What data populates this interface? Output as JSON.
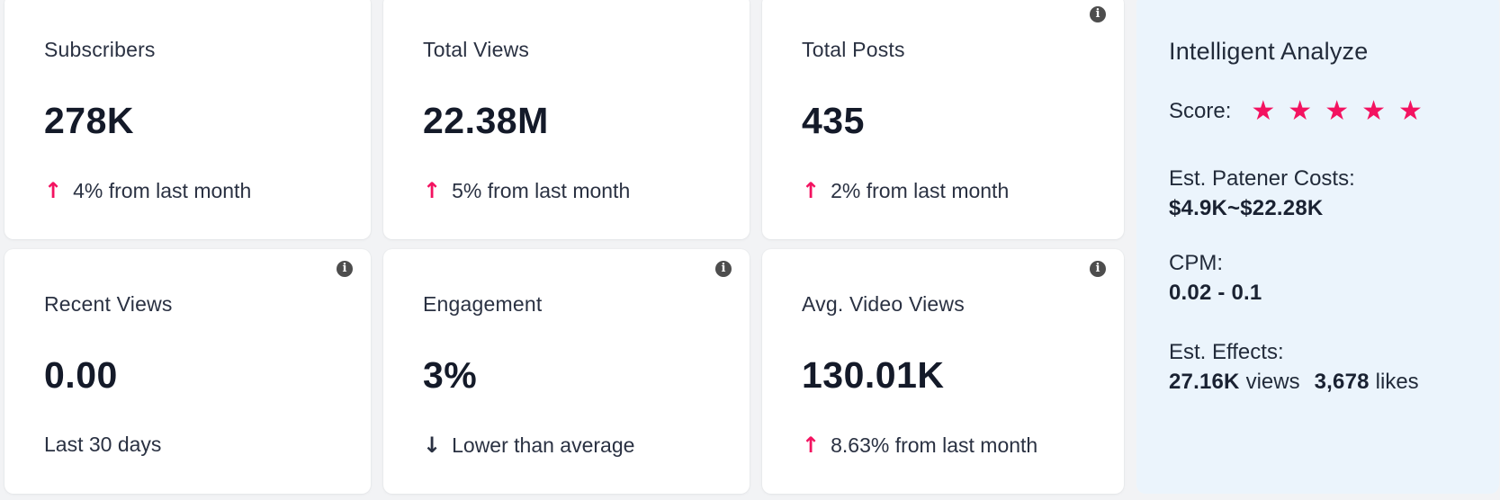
{
  "colors": {
    "accent_pink": "#f31260",
    "panel_blue": "#ebf4fc",
    "card_white": "#ffffff",
    "page_bg": "#f2f3f5",
    "text_dark": "#222b3a",
    "info_gray": "#4d4d4d"
  },
  "icons": {
    "star": "★",
    "info": "i",
    "arrow_up": "↑",
    "arrow_down": "↓"
  },
  "cards": [
    {
      "label": "Subscribers",
      "value": "278K",
      "trend": "up",
      "footer_text": "4% from last month",
      "has_info": false
    },
    {
      "label": "Total Views",
      "value": "22.38M",
      "trend": "up",
      "footer_text": "5% from last month",
      "has_info": false
    },
    {
      "label": "Total Posts",
      "value": "435",
      "trend": "up",
      "footer_text": "2% from last month",
      "has_info": true
    },
    {
      "label": "Recent Views",
      "value": "0.00",
      "trend": null,
      "footer_text": "Last 30 days",
      "has_info": true
    },
    {
      "label": "Engagement",
      "value": "3%",
      "trend": "down",
      "footer_text": "Lower than average",
      "has_info": true
    },
    {
      "label": "Avg. Video Views",
      "value": "130.01K",
      "trend": "up",
      "footer_text": "8.63% from last month",
      "has_info": true
    }
  ],
  "panel": {
    "title": "Intelligent Analyze",
    "score_label": "Score:",
    "score_stars": 5,
    "costs_label": "Est. Patener Costs:",
    "costs_value": "$4.9K~$22.28K",
    "cpm_label": "CPM:",
    "cpm_value": "0.02 - 0.1",
    "effects_label": "Est. Effects:",
    "effects_views_value": "27.16K",
    "effects_views_unit": "views",
    "effects_likes_value": "3,678",
    "effects_likes_unit": "likes"
  }
}
